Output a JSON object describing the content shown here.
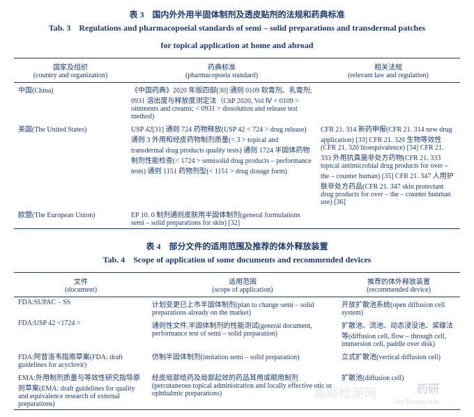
{
  "table3": {
    "title_cn": "表 3　国内外外用半固体制剂及透皮贴剂的法规和药典标准",
    "title_en_l1": "Tab. 3　Regulations and pharmacopoeial standards of semi – solid preparations and transdermal patches",
    "title_en_l2": "for topical application at home and abroad",
    "headers": {
      "col1_cn": "国家及组织",
      "col1_en": "(country and organization)",
      "col2_cn": "药典标准",
      "col2_en": "(pharmacopoeia standard)",
      "col3_cn": "相关法规",
      "col3_en": "(relevant law and regulation)"
    },
    "rows": [
      {
        "c1": "中国(China)",
        "c2": "《中国药典》2020 年版四部[30] 通则 0109 软膏剂、乳膏剂; 0931 溶出度与释放度测定法（ChP 2020, Vol Ⅳ < 0109 > ointments and creams; < 0931 > dissolution and release test method)",
        "c3": ""
      },
      {
        "c1": "美国(The United States)",
        "c2": "USP 42[31] 通则 724 药物释放(USP 42 < 724 > drug release) 通则 3 外用和经皮药物制剂质量(< 3 > topical and transdermal drug products quality tests) 通则 1724 半固体药物制剂性能检查(< 1724 > semisolid drug products – performance tests) 通则 1151 药物剂型(< 1151 > drug dosage form)",
        "c3": "CFR 21. 314 新药申报(CFR 21. 314 new drug application) [33] CFR 21. 320 生物等效性(CFR 21. 320 bioequivalence) [34] CFR 21. 333 外用抗真菌非处方药物(CFR 21. 333 topical antimicrobial drug products for over – the – counter human) [35] CFR 21. 347 人用护肤非处方药品(CFR 21. 347 skin protectant drug products for over – the – counter hunman use) [36]"
      },
      {
        "c1": "欧盟(The European Union)",
        "c2": "EP 10. 0 制剂通则皮肤用半固体制剂(general formulations semi – solid preparations for skin) [32]",
        "c3": ""
      }
    ]
  },
  "table4": {
    "title_cn": "表 4　部分文件的适用范围及推荐的体外释放装置",
    "title_en": "Tab. 4　Scope of application of some documents and recommended devices",
    "headers": {
      "col1_cn": "文件",
      "col1_en": "(document)",
      "col2_cn": "适用范围",
      "col2_en": "(scope of application)",
      "col3_cn": "推荐的体外释放装置",
      "col3_en": "(recommended device)"
    },
    "rows": [
      {
        "c1": "FDA:SUPAC – SS",
        "c2": "计划变更已上市半固体制剂(plan to change semi – solid preparations already on the market)",
        "c3": "开放扩散池系统(open diffusion cell system)"
      },
      {
        "c1": "FDA:USP 42 <1724 >",
        "c2": "通则性文件,半固体制剂的性能测试(general document, performance test of semi – solid preparation)",
        "c3": "扩散池、流池、动态浸没池、桨碟法等(diffusion cell, flow – through cell, immersion cell, paddle over disk)"
      },
      {
        "c1": "FDA:阿昔洛韦指南草案(FDA: draft guidelines for acyclovir)",
        "c2": "仿制半固体制剂(imitation semi – solid preparation)",
        "c3": "立式扩散池(vertical diffusion cell)"
      },
      {
        "c1": "EMA:外用制剂质量与等效性研究指导原则草案(EMA: draft guidelines for quality and equivalence research of external preparations)",
        "c2": "经皮局部给药及局部起效的药品耳用或眼用制剂(percutaneous topical administration and locally effective otic or ophthalmic preparations)",
        "c3": "扩散池(diffusion cell)"
      }
    ]
  },
  "watermark": {
    "text1": "药研",
    "text2": "AnyTesting.com",
    "text3": "嘉峪检测网"
  }
}
